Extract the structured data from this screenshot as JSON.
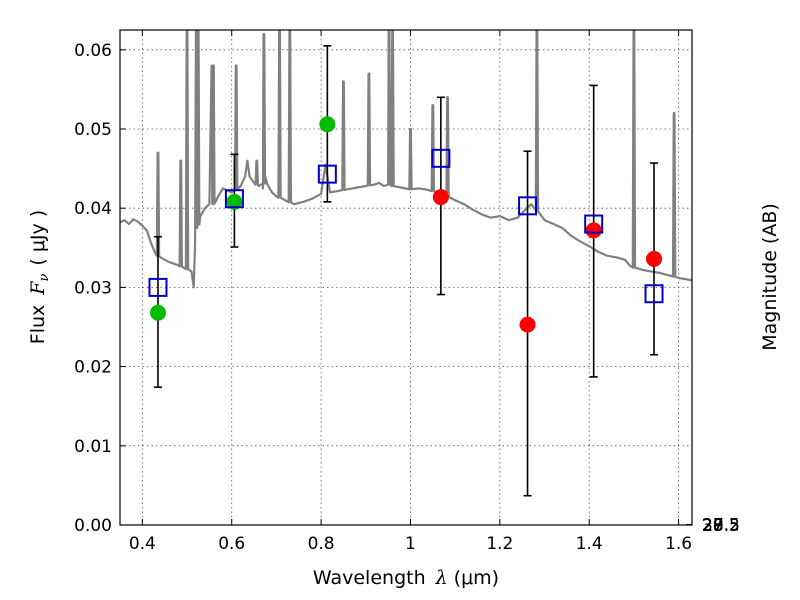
{
  "chart_data": {
    "type": "scatter",
    "xlabel_text": "Wavelength",
    "xlabel_symbol": "λ",
    "xlabel_unit": "(μm)",
    "ylabel_text": "Flux",
    "ylabel_symbol": "F",
    "ylabel_subscript": "ν",
    "ylabel_unit": "( μJy )",
    "y2label": "Magnitude (AB)",
    "xlim": [
      0.35,
      1.63
    ],
    "ylim": [
      0.0,
      0.0625
    ],
    "grid": true,
    "x_ticks": [
      0.4,
      0.6,
      0.8,
      1.0,
      1.2,
      1.4,
      1.6
    ],
    "x_tick_labels": [
      "0.4",
      "0.6",
      "0.8",
      "1",
      "1.2",
      "1.4",
      "1.6"
    ],
    "y_ticks": [
      0.0,
      0.01,
      0.02,
      0.03,
      0.04,
      0.05,
      0.06
    ],
    "y_tick_labels": [
      "0.00",
      "0.01",
      "0.02",
      "0.03",
      "0.04",
      "0.05",
      "0.06"
    ],
    "y2_ticks": [
      27,
      27.2,
      27.5,
      28,
      28.5,
      29,
      30
    ],
    "y2_tick_labels": [
      "27",
      "27.2",
      "27.5",
      "28",
      "28.5",
      "29",
      "30"
    ],
    "colors": {
      "spectrum": "#808080",
      "green": "#00bb00",
      "red": "#ff0000",
      "model": "#0000cc",
      "errorbar": "#000000",
      "grid": "#555555"
    },
    "spectrum": [
      [
        0.35,
        0.0382
      ],
      [
        0.36,
        0.0385
      ],
      [
        0.37,
        0.038
      ],
      [
        0.38,
        0.0386
      ],
      [
        0.39,
        0.0383
      ],
      [
        0.4,
        0.0378
      ],
      [
        0.41,
        0.0372
      ],
      [
        0.42,
        0.0355
      ],
      [
        0.43,
        0.0342
      ],
      [
        0.44,
        0.0338
      ],
      [
        0.46,
        0.0332
      ],
      [
        0.48,
        0.0328
      ],
      [
        0.5,
        0.0323
      ],
      [
        0.51,
        0.032
      ],
      [
        0.515,
        0.03
      ],
      [
        0.518,
        0.0355
      ],
      [
        0.52,
        0.0625
      ],
      [
        0.523,
        0.0375
      ],
      [
        0.53,
        0.039
      ],
      [
        0.54,
        0.04
      ],
      [
        0.55,
        0.0405
      ],
      [
        0.555,
        0.058
      ],
      [
        0.558,
        0.0405
      ],
      [
        0.57,
        0.0415
      ],
      [
        0.58,
        0.0425
      ],
      [
        0.6,
        0.042
      ],
      [
        0.62,
        0.0428
      ],
      [
        0.63,
        0.044
      ],
      [
        0.635,
        0.046
      ],
      [
        0.64,
        0.044
      ],
      [
        0.65,
        0.0432
      ],
      [
        0.66,
        0.0428
      ],
      [
        0.67,
        0.0425
      ],
      [
        0.675,
        0.044
      ],
      [
        0.68,
        0.043
      ],
      [
        0.69,
        0.042
      ],
      [
        0.7,
        0.0415
      ],
      [
        0.72,
        0.041
      ],
      [
        0.74,
        0.0405
      ],
      [
        0.76,
        0.0408
      ],
      [
        0.78,
        0.0412
      ],
      [
        0.8,
        0.0418
      ],
      [
        0.81,
        0.0455
      ],
      [
        0.82,
        0.042
      ],
      [
        0.84,
        0.0422
      ],
      [
        0.86,
        0.0424
      ],
      [
        0.88,
        0.0426
      ],
      [
        0.9,
        0.0428
      ],
      [
        0.92,
        0.043
      ],
      [
        0.93,
        0.0432
      ],
      [
        0.94,
        0.0428
      ],
      [
        0.95,
        0.043
      ],
      [
        0.96,
        0.0428
      ],
      [
        0.98,
        0.0426
      ],
      [
        1.0,
        0.0424
      ],
      [
        1.02,
        0.0425
      ],
      [
        1.03,
        0.0424
      ],
      [
        1.04,
        0.0423
      ],
      [
        1.06,
        0.042
      ],
      [
        1.08,
        0.0415
      ],
      [
        1.1,
        0.041
      ],
      [
        1.12,
        0.0405
      ],
      [
        1.14,
        0.0398
      ],
      [
        1.16,
        0.0392
      ],
      [
        1.18,
        0.0388
      ],
      [
        1.2,
        0.039
      ],
      [
        1.22,
        0.0385
      ],
      [
        1.24,
        0.0388
      ],
      [
        1.26,
        0.04
      ],
      [
        1.27,
        0.0405
      ],
      [
        1.28,
        0.0398
      ],
      [
        1.3,
        0.0385
      ],
      [
        1.32,
        0.038
      ],
      [
        1.34,
        0.0375
      ],
      [
        1.36,
        0.0365
      ],
      [
        1.38,
        0.0358
      ],
      [
        1.4,
        0.0352
      ],
      [
        1.42,
        0.0345
      ],
      [
        1.44,
        0.034
      ],
      [
        1.46,
        0.0338
      ],
      [
        1.48,
        0.0335
      ],
      [
        1.49,
        0.0328
      ],
      [
        1.5,
        0.0325
      ],
      [
        1.52,
        0.0322
      ],
      [
        1.54,
        0.032
      ],
      [
        1.56,
        0.0318
      ],
      [
        1.58,
        0.0315
      ],
      [
        1.6,
        0.0312
      ],
      [
        1.62,
        0.031
      ],
      [
        1.63,
        0.0309
      ]
    ],
    "spectrum_lines": [
      {
        "x": 0.435,
        "peak": 0.047
      },
      {
        "x": 0.486,
        "peak": 0.046
      },
      {
        "x": 0.5,
        "peak": 0.0625
      },
      {
        "x": 0.525,
        "peak": 0.0625
      },
      {
        "x": 0.559,
        "peak": 0.058
      },
      {
        "x": 0.61,
        "peak": 0.058
      },
      {
        "x": 0.656,
        "peak": 0.046
      },
      {
        "x": 0.672,
        "peak": 0.062
      },
      {
        "x": 0.707,
        "peak": 0.0625
      },
      {
        "x": 0.73,
        "peak": 0.0625
      },
      {
        "x": 0.85,
        "peak": 0.056
      },
      {
        "x": 0.907,
        "peak": 0.057
      },
      {
        "x": 0.952,
        "peak": 0.0625
      },
      {
        "x": 0.96,
        "peak": 0.0625
      },
      {
        "x": 1.0,
        "peak": 0.05
      },
      {
        "x": 1.05,
        "peak": 0.053
      },
      {
        "x": 1.083,
        "peak": 0.054
      },
      {
        "x": 1.283,
        "peak": 0.0625
      },
      {
        "x": 1.5,
        "peak": 0.0625
      },
      {
        "x": 1.59,
        "peak": 0.052
      }
    ],
    "series": [
      {
        "name": "observed-green",
        "marker": "circle",
        "points": [
          {
            "x": 0.435,
            "y": 0.0268
          },
          {
            "x": 0.606,
            "y": 0.0408
          },
          {
            "x": 0.814,
            "y": 0.0506
          }
        ]
      },
      {
        "name": "observed-red",
        "marker": "circle",
        "points": [
          {
            "x": 1.068,
            "y": 0.0414
          },
          {
            "x": 1.262,
            "y": 0.0253
          },
          {
            "x": 1.41,
            "y": 0.0372
          },
          {
            "x": 1.545,
            "y": 0.0336
          }
        ]
      },
      {
        "name": "model-squares",
        "marker": "open-square",
        "points": [
          {
            "x": 0.435,
            "y": 0.03
          },
          {
            "x": 0.606,
            "y": 0.0412
          },
          {
            "x": 0.814,
            "y": 0.0443
          },
          {
            "x": 1.068,
            "y": 0.0463
          },
          {
            "x": 1.262,
            "y": 0.0403
          },
          {
            "x": 1.41,
            "y": 0.038
          },
          {
            "x": 1.545,
            "y": 0.0292
          }
        ]
      }
    ],
    "errorbars": [
      {
        "x": 0.435,
        "low": 0.0174,
        "high": 0.0364
      },
      {
        "x": 0.606,
        "low": 0.0351,
        "high": 0.0468
      },
      {
        "x": 0.814,
        "low": 0.0408,
        "high": 0.0605
      },
      {
        "x": 1.068,
        "low": 0.0291,
        "high": 0.054
      },
      {
        "x": 1.262,
        "low": 0.0037,
        "high": 0.0472
      },
      {
        "x": 1.41,
        "low": 0.0187,
        "high": 0.0555
      },
      {
        "x": 1.545,
        "low": 0.0215,
        "high": 0.0457
      }
    ]
  }
}
